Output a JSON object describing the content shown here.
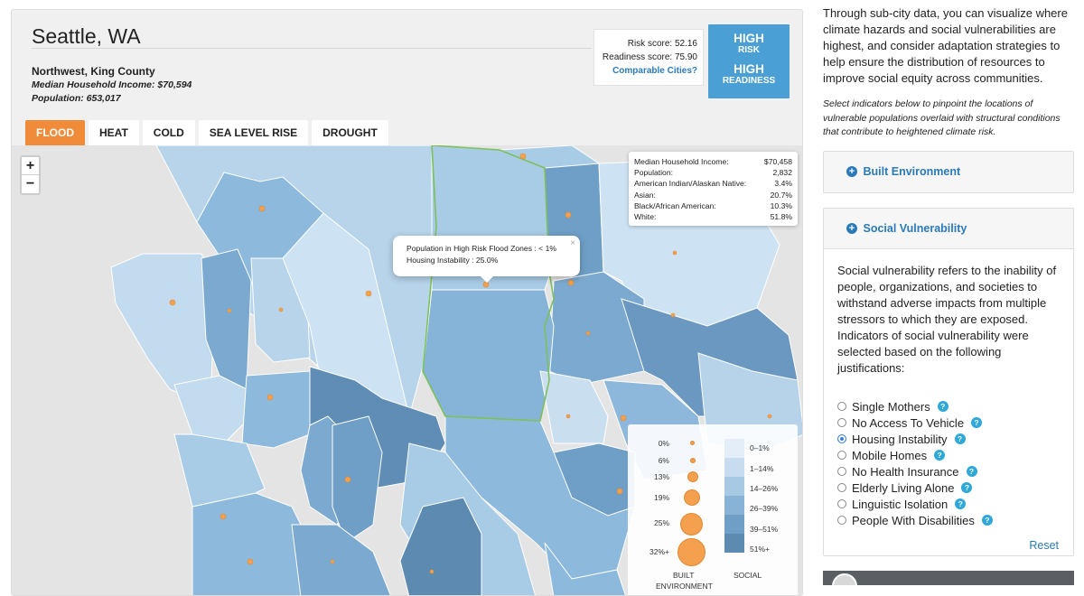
{
  "city": {
    "title": "Seattle, WA",
    "region": "Northwest, King County",
    "median_income": "Median Household Income: $70,594",
    "population": "Population: 653,017"
  },
  "scores": {
    "risk": "Risk score: 52.16",
    "readiness": "Readiness score: 75.90",
    "comparable_link": "Comparable Cities?"
  },
  "badge": {
    "risk_big": "HIGH",
    "risk_small": "RISK",
    "readiness_big": "HIGH",
    "readiness_small": "READINESS",
    "color": "#4a9fd4"
  },
  "tabs": [
    {
      "label": "FLOOD",
      "active": true
    },
    {
      "label": "HEAT",
      "active": false
    },
    {
      "label": "COLD",
      "active": false
    },
    {
      "label": "SEA LEVEL RISE",
      "active": false
    },
    {
      "label": "DROUGHT",
      "active": false
    }
  ],
  "zoom": {
    "plus": "+",
    "minus": "−"
  },
  "info_box": [
    {
      "label": "Median Household Income:",
      "value": "$70,458"
    },
    {
      "label": "Population:",
      "value": "2,832"
    },
    {
      "label": "American Indian/Alaskan Native:",
      "value": "3.4%"
    },
    {
      "label": "Asian:",
      "value": "20.7%"
    },
    {
      "label": "Black/African American:",
      "value": "10.3%"
    },
    {
      "label": "White:",
      "value": "51.8%"
    }
  ],
  "popup": {
    "line1": "Population in High Risk Flood Zones : < 1%",
    "line2": "Housing Instability : 25.0%",
    "close": "×"
  },
  "legend": {
    "built_values": [
      "0%",
      "6%",
      "13%",
      "19%",
      "25%",
      "32%+"
    ],
    "social_values": [
      "0–1%",
      "1–14%",
      "14–26%",
      "26–39%",
      "39–51%",
      "51%+"
    ],
    "social_colors": [
      "#e4eef8",
      "#c7dcee",
      "#a7c9e4",
      "#88b3d6",
      "#6f9fc6",
      "#5c8ab0"
    ],
    "built_caption": "BUILT",
    "built_caption_2": "ENVIRONMENT",
    "social_caption": "SOCIAL",
    "bubble_color": "#f5a04f"
  },
  "intro": "Through sub-city data, you can visualize where climate hazards and social vulnerabilities are highest, and consider adaptation strategies to help ensure the distribution of resources to improve social equity across communities.",
  "note": "Select indicators below to pinpoint the locations of vulnerable populations overlaid with structural conditions that contribute to heightened climate risk.",
  "sections": {
    "built": "Built Environment",
    "social": "Social Vulnerability"
  },
  "social_description": "Social vulnerability refers to the inability of people, organizations, and societies to withstand adverse impacts from multiple stressors to which they are exposed. Indicators of social vulnerability were selected based on the following justifications:",
  "indicators": [
    {
      "label": "Single Mothers",
      "checked": false
    },
    {
      "label": "No Access To Vehicle",
      "checked": false
    },
    {
      "label": "Housing Instability",
      "checked": true
    },
    {
      "label": "Mobile Homes",
      "checked": false
    },
    {
      "label": "No Health Insurance",
      "checked": false
    },
    {
      "label": "Elderly Living Alone",
      "checked": false
    },
    {
      "label": "Linguistic Isolation",
      "checked": false
    },
    {
      "label": "People With Disabilities",
      "checked": false
    }
  ],
  "help_glyph": "?",
  "reset": "Reset",
  "colors": {
    "accent_orange": "#f08b3a",
    "link_blue": "#2a7ab8",
    "highlight_green": "#7cc05a"
  }
}
